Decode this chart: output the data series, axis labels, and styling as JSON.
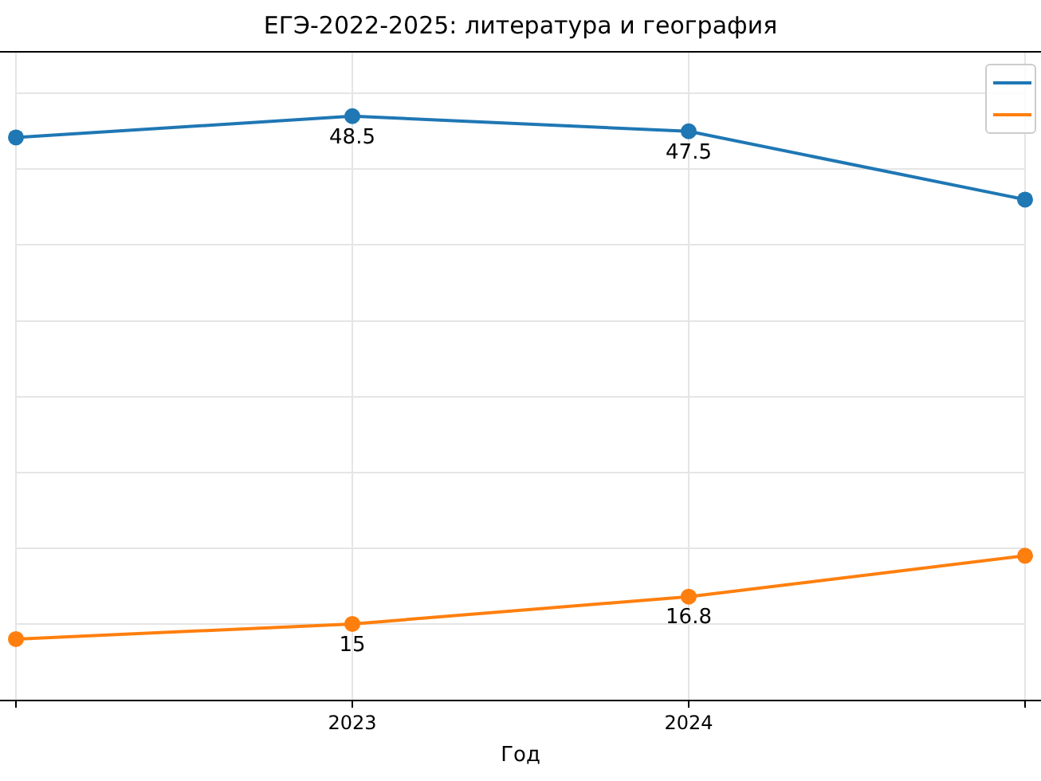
{
  "chart_data": {
    "type": "line",
    "title": "ЕГЭ-2022-2025: литература и география",
    "xlabel": "Год",
    "categories": [
      null,
      "2023",
      "2024",
      null
    ],
    "series": [
      {
        "color": "#1f77b4",
        "values": [
          47.1,
          48.5,
          47.5,
          43.0
        ],
        "value_labels": [
          null,
          "48.5",
          "47.5",
          null
        ]
      },
      {
        "color": "#ff7f0e",
        "values": [
          14.0,
          15,
          16.8,
          19.5
        ],
        "value_labels": [
          null,
          "15",
          "16.8",
          null
        ]
      }
    ],
    "ylim": [
      10,
      52.8
    ],
    "yticks": [
      {
        "value": 15,
        "label": null
      },
      {
        "value": 20,
        "label": null
      },
      {
        "value": 25,
        "label": null
      },
      {
        "value": 30,
        "label": null
      },
      {
        "value": 35,
        "label": null
      },
      {
        "value": 40,
        "label": null
      },
      {
        "value": 45,
        "label": null
      },
      {
        "value": 50,
        "label": null
      }
    ],
    "tick_labels": "x",
    "grid": true,
    "marker": "circle",
    "line_style": "solid"
  }
}
